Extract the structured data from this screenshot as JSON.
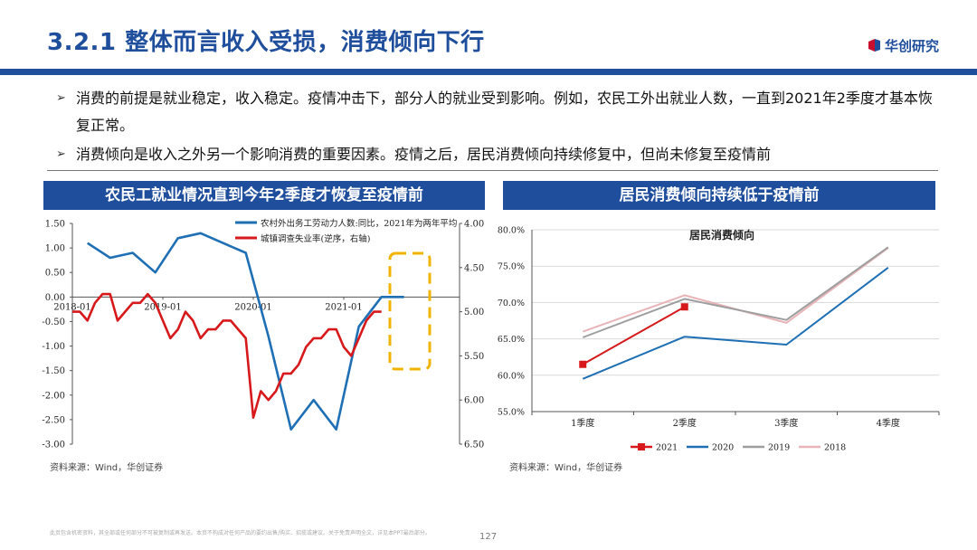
{
  "header": {
    "title": "3.2.1 整体而言收入受损，消费倾向下行",
    "logo_text": "华创研究"
  },
  "bullets": [
    {
      "marker": "➢",
      "text": "消费的前提是就业稳定，收入稳定。疫情冲击下，部分人的就业受到影响。例如，农民工外出就业人数，一直到2021年2季度才基本恢复正常。"
    },
    {
      "marker": "➢",
      "text": "消费倾向是收入之外另一个影响消费的重要因素。疫情之后，居民消费倾向持续修复中，但尚未修复至疫情前"
    }
  ],
  "panels": {
    "left": {
      "title": "农民工就业情况直到今年2季度才恢复至疫情前",
      "source": "资料来源：Wind，华创证券"
    },
    "right": {
      "title": "居民消费倾向持续低于疫情前",
      "source": "资料来源：Wind，华创证券"
    }
  },
  "footer": {
    "disclaimer": "此页包含机密资料，其全部或任何部分不可被复制或再发送。本页不构成对任何产品的要约出售/购买、招揽或建议。关于免责声明全文，详见本PPT最后部分。",
    "page_number": "127"
  },
  "colors": {
    "brand": "#1f4e9c",
    "blue": "#1f6fb5",
    "red": "#d7191c",
    "gray": "#9e9e9e",
    "pink": "#e8b4b8",
    "highlight": "#f0b400"
  },
  "chart_data": [
    {
      "type": "line",
      "title": "",
      "x_ticks": [
        "2018-01",
        "2019-01",
        "2020-01",
        "2021-01"
      ],
      "x_range": [
        0,
        48
      ],
      "ylim_left": [
        -3.0,
        1.5
      ],
      "y_ticks_left": [
        "1.50",
        "1.00",
        "0.50",
        "0.00",
        "-0.50",
        "-1.00",
        "-1.50",
        "-2.00",
        "-2.50",
        "-3.00"
      ],
      "ylim_right": [
        4.0,
        6.5
      ],
      "right_inverted": true,
      "y_ticks_right": [
        "4.00",
        "4.50",
        "5.00",
        "5.50",
        "6.00",
        "6.50"
      ],
      "series": [
        {
          "name": "农村外出务工劳动力人数:同比，2021年为两年平均",
          "axis": "left",
          "color": "#1f6fb5",
          "x": [
            2,
            5,
            8,
            11,
            14,
            17,
            20,
            23,
            26,
            29,
            32,
            35,
            38,
            41,
            44
          ],
          "y": [
            1.1,
            0.8,
            0.9,
            0.5,
            1.2,
            1.3,
            1.1,
            0.9,
            -0.8,
            -2.7,
            -2.1,
            -2.7,
            -0.6,
            0.0,
            0.0
          ]
        },
        {
          "name": "城镇调查失业率(逆序，右轴)",
          "axis": "right",
          "color": "#d7191c",
          "x": [
            0,
            1,
            2,
            3,
            4,
            5,
            6,
            7,
            8,
            9,
            10,
            11,
            12,
            13,
            14,
            15,
            16,
            17,
            18,
            19,
            20,
            21,
            22,
            23,
            24,
            25,
            26,
            27,
            28,
            29,
            30,
            31,
            32,
            33,
            34,
            35,
            36,
            37,
            38,
            39,
            40,
            41
          ],
          "y": [
            5.0,
            5.0,
            5.1,
            4.9,
            4.8,
            4.8,
            5.1,
            5.0,
            4.9,
            4.9,
            4.8,
            4.9,
            5.1,
            5.3,
            5.2,
            5.0,
            5.1,
            5.3,
            5.2,
            5.2,
            5.1,
            5.1,
            5.2,
            5.3,
            6.2,
            5.9,
            6.0,
            5.9,
            5.7,
            5.7,
            5.6,
            5.4,
            5.3,
            5.3,
            5.2,
            5.2,
            5.4,
            5.5,
            5.3,
            5.1,
            5.0,
            5.0
          ]
        }
      ],
      "annotations": [
        "dashed-highlight-box-2021Q2"
      ]
    },
    {
      "type": "line",
      "title": "居民消费倾向",
      "categories": [
        "1季度",
        "2季度",
        "3季度",
        "4季度"
      ],
      "ylim": [
        55.0,
        80.0
      ],
      "y_ticks": [
        "80.0%",
        "75.0%",
        "70.0%",
        "65.0%",
        "60.0%",
        "55.0%"
      ],
      "series": [
        {
          "name": "2021",
          "color": "#d7191c",
          "values": [
            61.5,
            69.4,
            null,
            null
          ]
        },
        {
          "name": "2020",
          "color": "#1f6fb5",
          "values": [
            59.5,
            65.3,
            64.2,
            74.8
          ]
        },
        {
          "name": "2019",
          "color": "#9e9e9e",
          "values": [
            65.2,
            70.5,
            67.6,
            77.6
          ]
        },
        {
          "name": "2018",
          "color": "#e8b4b8",
          "values": [
            66.0,
            71.0,
            67.2,
            77.5
          ]
        }
      ]
    }
  ]
}
